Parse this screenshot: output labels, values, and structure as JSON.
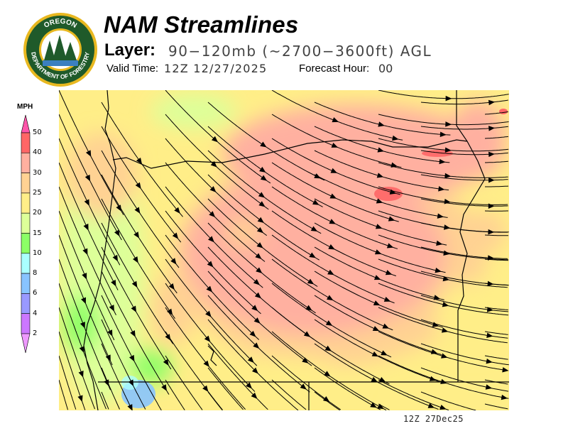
{
  "header": {
    "title": "NAM Streamlines",
    "layer_label": "Layer:",
    "layer_value": "90−120mb (~2700−3600ft) AGL",
    "valid_label": "Valid Time:",
    "valid_value": "12Z 12/27/2025",
    "forecast_hour_label": "Forecast Hour:",
    "forecast_hour_value": "00"
  },
  "logo": {
    "top_text": "OREGON",
    "bottom_text": "DEPARTMENT OF FORESTRY",
    "colors": {
      "ring": "#e8b820",
      "field": "#1f5a2a"
    }
  },
  "legend": {
    "unit": "MPH",
    "ticks": [
      "50",
      "40",
      "30",
      "25",
      "20",
      "15",
      "10",
      "8",
      "6",
      "4",
      "2"
    ],
    "bins": [
      {
        "range": ">50",
        "color": "#ff55aa"
      },
      {
        "range": "40-50",
        "color": "#ff6666"
      },
      {
        "range": "30-40",
        "color": "#ffb0a0"
      },
      {
        "range": "25-30",
        "color": "#ffd293"
      },
      {
        "range": "20-25",
        "color": "#ffee88"
      },
      {
        "range": "15-20",
        "color": "#ddff99"
      },
      {
        "range": "10-15",
        "color": "#8cff66"
      },
      {
        "range": "8-10",
        "color": "#aaffff"
      },
      {
        "range": "6-8",
        "color": "#88c4ff"
      },
      {
        "range": "4-6",
        "color": "#9999ff"
      },
      {
        "range": "2-4",
        "color": "#cc77ff"
      },
      {
        "range": "<2",
        "color": "#ee99ff"
      }
    ]
  },
  "map": {
    "region": "Oregon",
    "base_color": "#ffee88",
    "stamp": "12Z 27Dec25"
  }
}
